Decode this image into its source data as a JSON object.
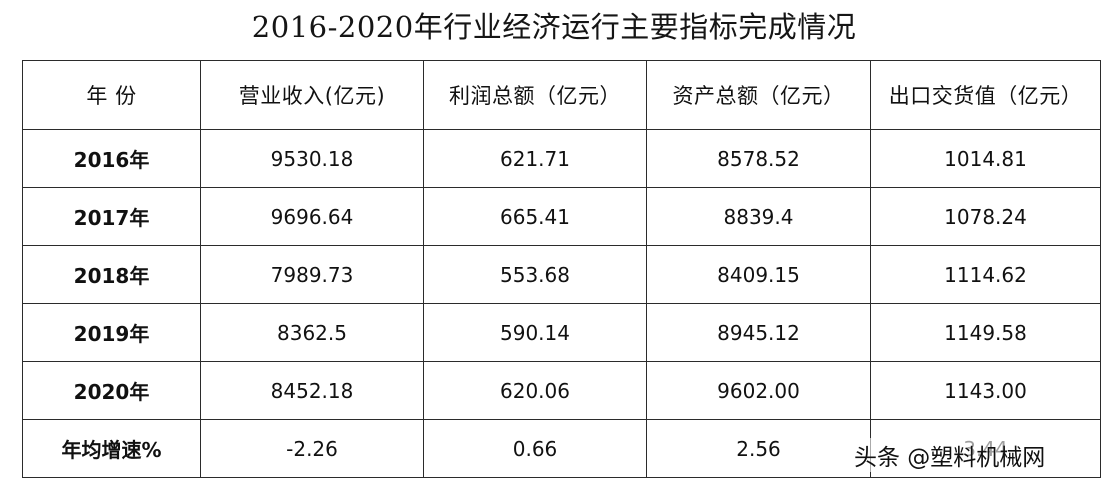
{
  "title": "2016-2020年行业经济运行主要指标完成情况",
  "table": {
    "headers": [
      "年 份",
      "营业收入(亿元)",
      "利润总额（亿元）",
      "资产总额（亿元）",
      "出口交货值（亿元）"
    ],
    "rows": [
      [
        "2016年",
        "9530.18",
        "621.71",
        "8578.52",
        "1014.81"
      ],
      [
        "2017年",
        "9696.64",
        "665.41",
        "8839.4",
        "1078.24"
      ],
      [
        "2018年",
        "7989.73",
        "553.68",
        "8409.15",
        "1114.62"
      ],
      [
        "2019年",
        "8362.5",
        "590.14",
        "8945.12",
        "1149.58"
      ],
      [
        "2020年",
        "8452.18",
        "620.06",
        "9602.00",
        "1143.00"
      ],
      [
        "年均增速%",
        "-2.26",
        "0.66",
        "2.56",
        "3.44"
      ]
    ]
  },
  "watermark": "头条 @塑料机械网"
}
